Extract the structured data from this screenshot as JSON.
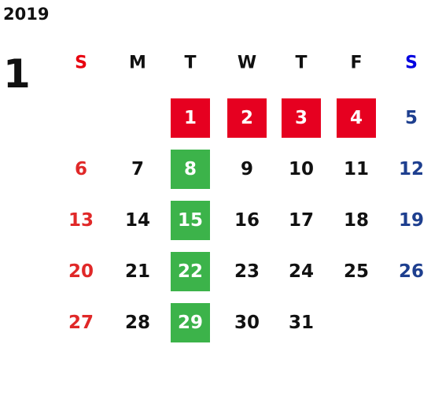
{
  "year": "2019",
  "month": "1",
  "weekdays": [
    "S",
    "M",
    "T",
    "W",
    "T",
    "F",
    "S"
  ],
  "weekday_colors": [
    "#e8000e",
    "#111111",
    "#111111",
    "#111111",
    "#111111",
    "#111111",
    "#0000e0"
  ],
  "date_colors": [
    "#e02828",
    "#111111",
    "#111111",
    "#111111",
    "#111111",
    "#111111",
    "#1e3f8f"
  ],
  "highlight_text_color": "#ffffff",
  "weeks": [
    [
      null,
      null,
      {
        "day": 1,
        "fill": "#e60020"
      },
      {
        "day": 2,
        "fill": "#e60020"
      },
      {
        "day": 3,
        "fill": "#e60020"
      },
      {
        "day": 4,
        "fill": "#e60020"
      },
      5
    ],
    [
      6,
      7,
      {
        "day": 8,
        "fill": "#3cb34a"
      },
      9,
      10,
      11,
      12
    ],
    [
      13,
      14,
      {
        "day": 15,
        "fill": "#3cb34a"
      },
      16,
      17,
      18,
      19
    ],
    [
      20,
      21,
      {
        "day": 22,
        "fill": "#3cb34a"
      },
      23,
      24,
      25,
      26
    ],
    [
      27,
      28,
      {
        "day": 29,
        "fill": "#3cb34a"
      },
      30,
      31,
      null,
      null
    ]
  ]
}
